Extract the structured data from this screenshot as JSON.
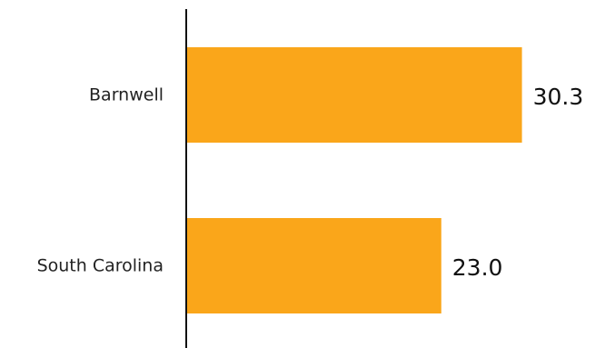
{
  "chart_data": {
    "type": "bar",
    "orientation": "horizontal",
    "categories": [
      "Barnwell",
      "South Carolina"
    ],
    "values": [
      30.3,
      23.0
    ],
    "value_labels": [
      "30.3",
      "23.0"
    ],
    "xlim": [
      0,
      36.5
    ],
    "grid": false,
    "legend": "none",
    "title": "",
    "xlabel": "",
    "ylabel": ""
  },
  "colors": {
    "bar": "#FAA61A",
    "axis": "#111111",
    "category_text": "#222222",
    "value_text": "#111111"
  }
}
